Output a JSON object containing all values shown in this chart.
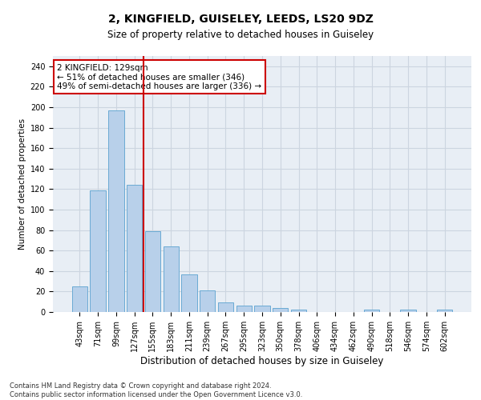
{
  "title1": "2, KINGFIELD, GUISELEY, LEEDS, LS20 9DZ",
  "title2": "Size of property relative to detached houses in Guiseley",
  "xlabel": "Distribution of detached houses by size in Guiseley",
  "ylabel": "Number of detached properties",
  "categories": [
    "43sqm",
    "71sqm",
    "99sqm",
    "127sqm",
    "155sqm",
    "183sqm",
    "211sqm",
    "239sqm",
    "267sqm",
    "295sqm",
    "323sqm",
    "350sqm",
    "378sqm",
    "406sqm",
    "434sqm",
    "462sqm",
    "490sqm",
    "518sqm",
    "546sqm",
    "574sqm",
    "602sqm"
  ],
  "values": [
    25,
    119,
    197,
    124,
    79,
    64,
    37,
    21,
    9,
    6,
    6,
    4,
    2,
    0,
    0,
    0,
    2,
    0,
    2,
    0,
    2
  ],
  "bar_color": "#b8d0ea",
  "bar_edge_color": "#6aaad4",
  "vline_index": 3,
  "vline_color": "#cc0000",
  "annotation_text": "2 KINGFIELD: 129sqm\n← 51% of detached houses are smaller (346)\n49% of semi-detached houses are larger (336) →",
  "annotation_box_color": "#ffffff",
  "annotation_box_edge": "#cc0000",
  "ylim": [
    0,
    250
  ],
  "yticks": [
    0,
    20,
    40,
    60,
    80,
    100,
    120,
    140,
    160,
    180,
    200,
    220,
    240
  ],
  "footer": "Contains HM Land Registry data © Crown copyright and database right 2024.\nContains public sector information licensed under the Open Government Licence v3.0.",
  "grid_color": "#ccd5e0",
  "bg_color": "#e8eef5",
  "title1_fontsize": 10,
  "title2_fontsize": 8.5,
  "xlabel_fontsize": 8.5,
  "ylabel_fontsize": 7.5,
  "tick_fontsize": 7,
  "annotation_fontsize": 7.5,
  "footer_fontsize": 6
}
